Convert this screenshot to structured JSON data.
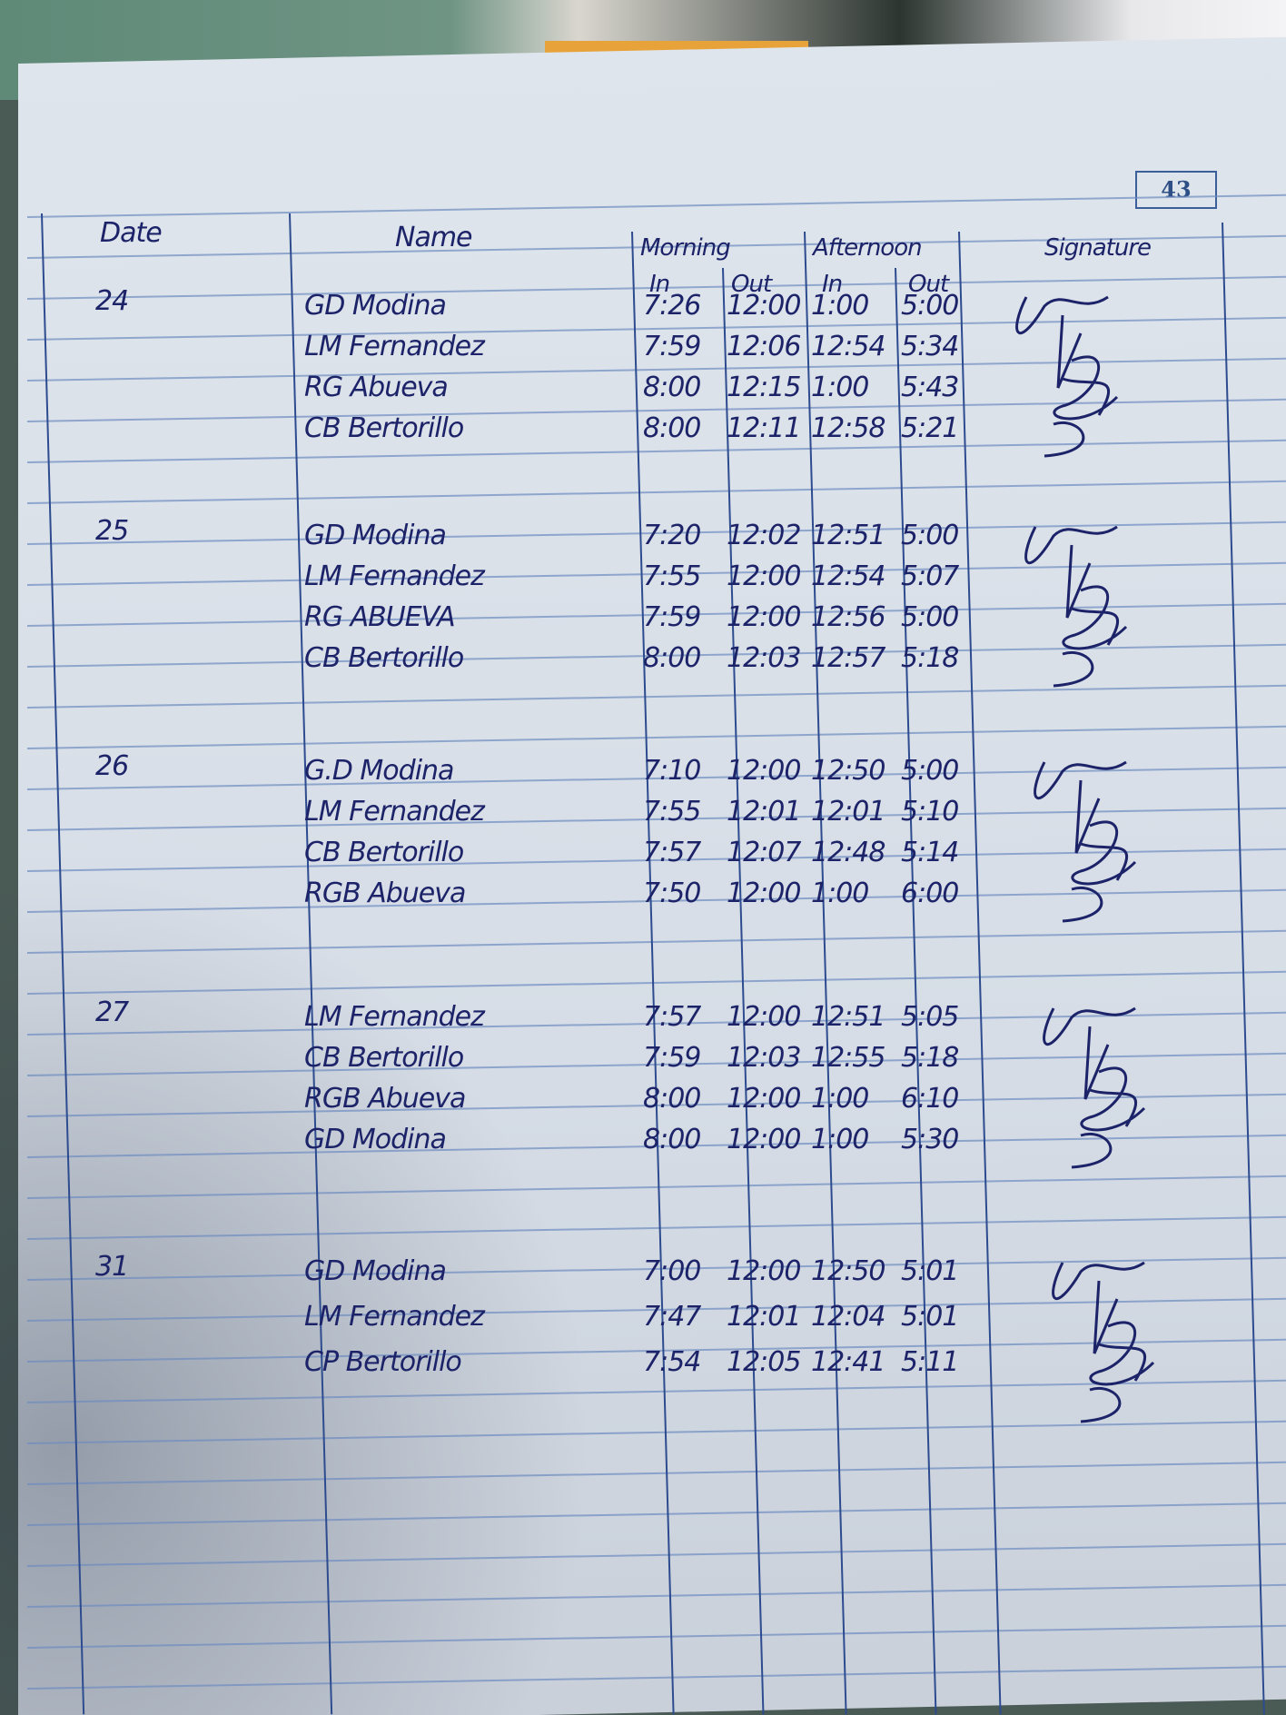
{
  "page_number": "43",
  "headers": {
    "date": "Date",
    "name": "Name",
    "morning": "Morning",
    "afternoon": "Afternoon",
    "signature": "Signature",
    "in1": "In",
    "out1": "Out",
    "in2": "In",
    "out2": "Out"
  },
  "groups": [
    {
      "date": "24",
      "rows": [
        {
          "name": "GD Modina",
          "am_in": "7:26",
          "am_out": "12:00",
          "pm_in": "1:00",
          "pm_out": "5:00"
        },
        {
          "name": "LM Fernandez",
          "am_in": "7:59",
          "am_out": "12:06",
          "pm_in": "12:54",
          "pm_out": "5:34"
        },
        {
          "name": "RG Abueva",
          "am_in": "8:00",
          "am_out": "12:15",
          "pm_in": "1:00",
          "pm_out": "5:43"
        },
        {
          "name": "CB Bertorillo",
          "am_in": "8:00",
          "am_out": "12:11",
          "pm_in": "12:58",
          "pm_out": "5:21"
        }
      ]
    },
    {
      "date": "25",
      "rows": [
        {
          "name": "GD Modina",
          "am_in": "7:20",
          "am_out": "12:02",
          "pm_in": "12:51",
          "pm_out": "5:00"
        },
        {
          "name": "LM Fernandez",
          "am_in": "7:55",
          "am_out": "12:00",
          "pm_in": "12:54",
          "pm_out": "5:07"
        },
        {
          "name": "RG ABUEVA",
          "am_in": "7:59",
          "am_out": "12:00",
          "pm_in": "12:56",
          "pm_out": "5:00"
        },
        {
          "name": "CB Bertorillo",
          "am_in": "8:00",
          "am_out": "12:03",
          "pm_in": "12:57",
          "pm_out": "5:18"
        }
      ]
    },
    {
      "date": "26",
      "rows": [
        {
          "name": "G.D Modina",
          "am_in": "7:10",
          "am_out": "12:00",
          "pm_in": "12:50",
          "pm_out": "5:00"
        },
        {
          "name": "LM Fernandez",
          "am_in": "7:55",
          "am_out": "12:01",
          "pm_in": "12:01",
          "pm_out": "5:10"
        },
        {
          "name": "CB Bertorillo",
          "am_in": "7:57",
          "am_out": "12:07",
          "pm_in": "12:48",
          "pm_out": "5:14"
        },
        {
          "name": "RGB Abueva",
          "am_in": "7:50",
          "am_out": "12:00",
          "pm_in": "1:00",
          "pm_out": "6:00"
        }
      ]
    },
    {
      "date": "27",
      "rows": [
        {
          "name": "LM Fernandez",
          "am_in": "7:57",
          "am_out": "12:00",
          "pm_in": "12:51",
          "pm_out": "5:05"
        },
        {
          "name": "CB Bertorillo",
          "am_in": "7:59",
          "am_out": "12:03",
          "pm_in": "12:55",
          "pm_out": "5:18"
        },
        {
          "name": "RGB Abueva",
          "am_in": "8:00",
          "am_out": "12:00",
          "pm_in": "1:00",
          "pm_out": "6:10"
        },
        {
          "name": "GD Modina",
          "am_in": "8:00",
          "am_out": "12:00",
          "pm_in": "1:00",
          "pm_out": "5:30"
        }
      ]
    },
    {
      "date": "31",
      "rows": [
        {
          "name": "GD Modina",
          "am_in": "7:00",
          "am_out": "12:00",
          "pm_in": "12:50",
          "pm_out": "5:01"
        },
        {
          "name": "LM Fernandez",
          "am_in": "7:47",
          "am_out": "12:01",
          "pm_in": "12:04",
          "pm_out": "5:01"
        },
        {
          "name": "CP Bertorillo",
          "am_in": "7:54",
          "am_out": "12:05",
          "pm_in": "12:41",
          "pm_out": "5:11"
        }
      ]
    }
  ],
  "colors": {
    "ink": "#1c2368",
    "rule": "#6d8cc0",
    "border": "#2d4b8f"
  }
}
